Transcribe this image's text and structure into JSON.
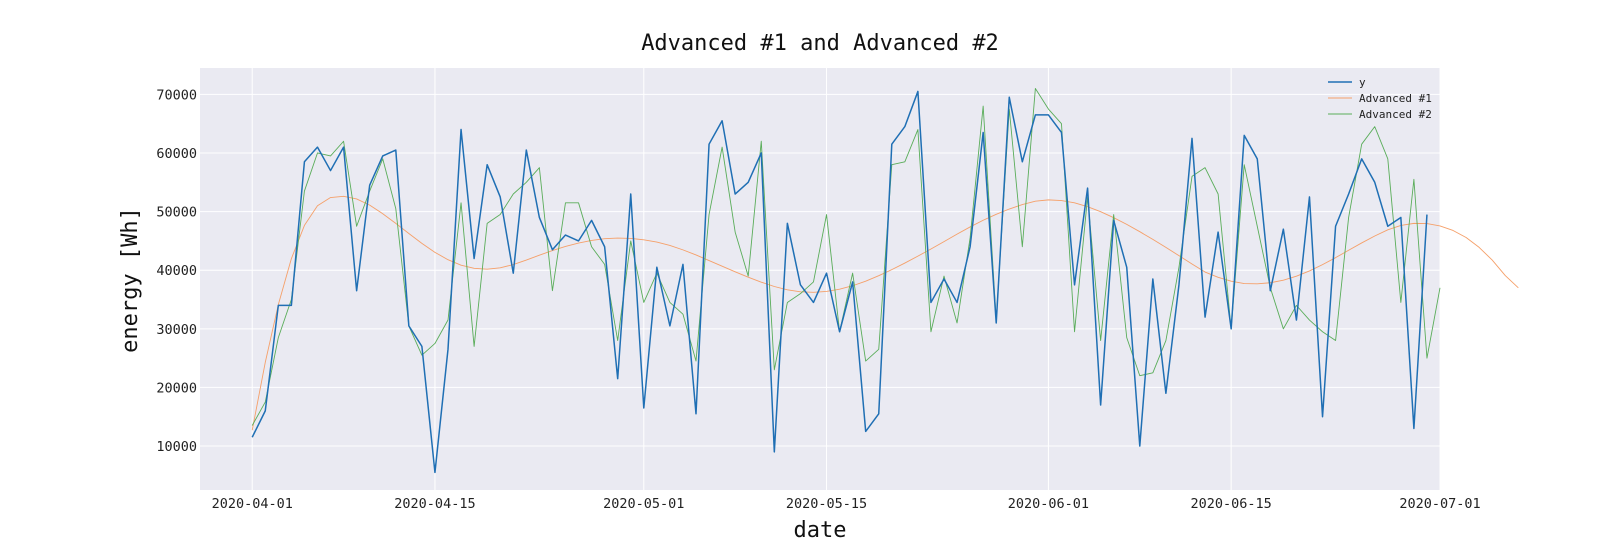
{
  "chart_data": {
    "type": "line",
    "title": "Advanced #1 and Advanced #2",
    "xlabel": "date",
    "ylabel": "energy [Wh]",
    "x_start": "2020-04-01",
    "x_step_days": 1,
    "xlim": [
      "2020-03-28",
      "2020-07-01"
    ],
    "ylim": [
      2500,
      74500
    ],
    "x_ticks": [
      "2020-04-01",
      "2020-04-15",
      "2020-05-01",
      "2020-05-15",
      "2020-06-01",
      "2020-06-15",
      "2020-07-01"
    ],
    "y_ticks": [
      10000,
      20000,
      30000,
      40000,
      50000,
      60000,
      70000
    ],
    "grid": true,
    "legend_position": "top-right",
    "series": [
      {
        "name": "y",
        "color": "#1f6fb4",
        "values": [
          11500,
          16000,
          34000,
          34000,
          58500,
          61000,
          57000,
          61000,
          36500,
          54500,
          59500,
          60500,
          30500,
          27000,
          5500,
          26500,
          64000,
          42000,
          58000,
          52500,
          39500,
          60500,
          49000,
          43500,
          46000,
          45000,
          48500,
          44000,
          21500,
          53000,
          16500,
          40500,
          30500,
          41000,
          15500,
          61500,
          65500,
          53000,
          55000,
          60000,
          9000,
          48000,
          37500,
          34500,
          39500,
          29500,
          38000,
          12500,
          15500,
          61500,
          64500,
          70500,
          34500,
          38500,
          34500,
          44000,
          63500,
          31000,
          69500,
          58500,
          66500,
          66500,
          63500,
          37500,
          54000,
          17000,
          48500,
          40500,
          10000,
          38500,
          19000,
          37500,
          62500,
          32000,
          46500,
          30000,
          63000,
          59000,
          36500,
          47000,
          31500,
          52500,
          15000,
          47500,
          53000,
          59000,
          55000,
          47500,
          49000,
          13000,
          49500
        ]
      },
      {
        "name": "Advanced #1",
        "color": "#f5a06a",
        "values": [
          12700,
          24270,
          34120,
          41970,
          47640,
          50990,
          52400,
          52600,
          52160,
          51100,
          49640,
          47990,
          46260,
          44570,
          43050,
          41790,
          40860,
          40320,
          40170,
          40400,
          40960,
          41730,
          42560,
          43350,
          44060,
          44640,
          45080,
          45380,
          45480,
          45420,
          45190,
          44800,
          44220,
          43470,
          42600,
          41650,
          40680,
          39730,
          38810,
          37960,
          37220,
          36650,
          36310,
          36230,
          36380,
          36760,
          37350,
          38130,
          39060,
          40100,
          41220,
          42400,
          43620,
          44880,
          46150,
          47380,
          48520,
          49540,
          50440,
          51200,
          51780,
          52000,
          51890,
          51490,
          50840,
          49980,
          48960,
          47820,
          46570,
          45260,
          43890,
          42480,
          41060,
          39690,
          38790,
          38130,
          37720,
          37670,
          37860,
          38300,
          38980,
          39880,
          40950,
          42140,
          43400,
          44650,
          45840,
          46890,
          47640,
          47990,
          47950,
          47560,
          46780,
          45580,
          43890,
          41730,
          39080,
          37000
        ]
      },
      {
        "name": "Advanced #2",
        "color": "#5aad5a",
        "values": [
          13500,
          17500,
          28500,
          35000,
          53500,
          60000,
          59500,
          62000,
          47500,
          53500,
          59000,
          50500,
          30500,
          25500,
          27500,
          31500,
          51500,
          27000,
          48000,
          49500,
          53000,
          55000,
          57500,
          36500,
          51500,
          51500,
          44000,
          41000,
          28000,
          45000,
          34500,
          39500,
          34500,
          32500,
          24500,
          49500,
          61000,
          46500,
          39000,
          62000,
          23000,
          34500,
          36000,
          38000,
          49500,
          29500,
          39500,
          24500,
          26500,
          58000,
          58500,
          64000,
          29500,
          39000,
          31000,
          45500,
          68000,
          31500,
          67500,
          44000,
          71000,
          67500,
          65000,
          29500,
          52500,
          28000,
          49500,
          28500,
          22000,
          22500,
          28000,
          40500,
          56000,
          57500,
          53000,
          30000,
          58000,
          47500,
          37000,
          30000,
          34000,
          31500,
          29500,
          28000,
          49000,
          61500,
          64500,
          59000,
          34500,
          55500,
          25000,
          37000
        ]
      }
    ]
  }
}
